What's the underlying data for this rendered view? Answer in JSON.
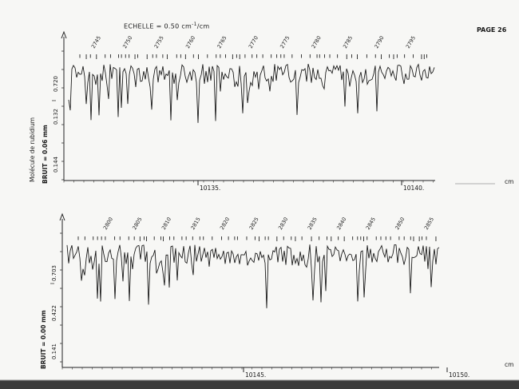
{
  "header": {
    "scale_label": "ECHELLE = 0.50 cm",
    "scale_exp": "-1",
    "scale_tail": "/cm",
    "page_label": "PAGE 26"
  },
  "top_panel": {
    "side_title": "Molécule de rubidium",
    "noise_label": "BRUIT =  0.06 mm",
    "ytick_labels": [
      "0.720",
      "0.132",
      "0.144"
    ],
    "i_marker": "I",
    "xtick_labels": [
      "10135.",
      "10140."
    ],
    "unit_label": "cm"
  },
  "bottom_panel": {
    "noise_label": "BRUIT =  0.00 mm",
    "ytick_labels": [
      "0.703",
      "0.422",
      "0.141"
    ],
    "i_marker": "I",
    "xtick_labels": [
      "10145.",
      "10150."
    ],
    "unit_label": "cm"
  },
  "chart_data": [
    {
      "type": "line",
      "title": "",
      "xlabel": "cm-1",
      "ylabel": "I",
      "x_tick_values": [
        10135,
        10140
      ],
      "ytick_labels": [
        "0.720",
        "0.132",
        "0.144"
      ],
      "line_markers": [
        2745,
        2750,
        2755,
        2760,
        2765,
        2770,
        2775,
        2780,
        2785,
        2790,
        2795
      ],
      "noise_mm": 0.06,
      "grid": false
    },
    {
      "type": "line",
      "title": "",
      "xlabel": "cm-1",
      "ylabel": "I",
      "x_tick_values": [
        10145,
        10150
      ],
      "ytick_labels": [
        "0.703",
        "0.422",
        "0.141"
      ],
      "line_markers": [
        2800,
        2805,
        2810,
        2815,
        2820,
        2825,
        2830,
        2835,
        2840,
        2845,
        2850,
        2855
      ],
      "noise_mm": 0.0,
      "grid": false
    }
  ]
}
